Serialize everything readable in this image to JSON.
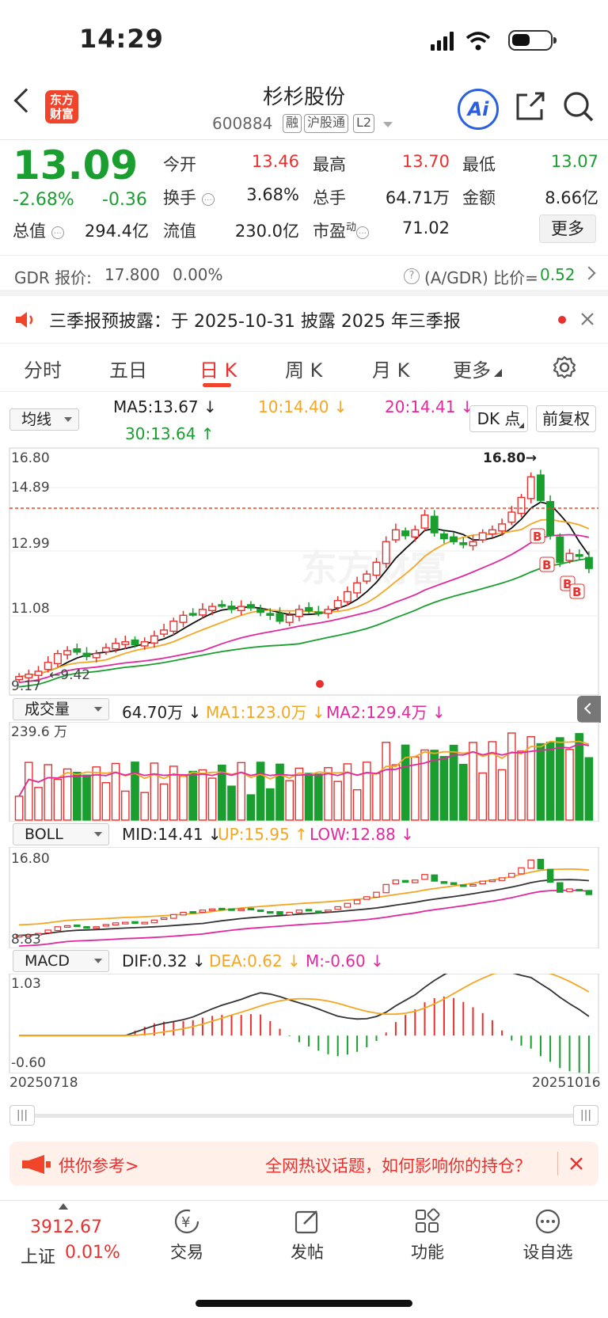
{
  "status_bar": {
    "time": "14:29"
  },
  "header": {
    "logo_text": "东方财富",
    "stock_name": "杉杉股份",
    "stock_code": "600884",
    "tags": [
      "融",
      "沪股通",
      "L2"
    ],
    "ai_label": "Ai"
  },
  "quote": {
    "price": "13.09",
    "change_pct": "-2.68%",
    "change_abs": "-0.36",
    "fields": {
      "open_label": "今开",
      "open": "13.46",
      "high_label": "最高",
      "high": "13.70",
      "low_label": "最低",
      "low": "13.07",
      "turnover_label": "换手",
      "turnover": "3.68%",
      "volume_label": "总手",
      "volume": "64.71万",
      "amount_label": "金额",
      "amount": "8.66亿",
      "mktcap_label": "总值",
      "mktcap": "294.4亿",
      "float_label": "流值",
      "float": "230.0亿",
      "pe_label": "市盈",
      "pe_sup": "动",
      "pe": "71.02"
    },
    "more_label": "更多"
  },
  "gdr": {
    "label": "GDR 报价:",
    "price": "17.800",
    "pct": "0.00%",
    "ratio_label": "(A/GDR) 比价=",
    "ratio": "0.52"
  },
  "notice": {
    "text": "三季报预披露：于 2025-10-31 披露 2025 年三季报"
  },
  "tabs": [
    "分时",
    "五日",
    "日 K",
    "周 K",
    "月 K",
    "更多"
  ],
  "active_tab": 2,
  "kline": {
    "selector": "均线",
    "ma5": "MA5:13.67 ↓",
    "ma10": "10:14.40 ↓",
    "ma20": "20:14.41 ↓",
    "ma30": "30:13.64 ↑",
    "dk_label": "DK 点",
    "fq_label": "前复权",
    "y_ticks": [
      "16.80",
      "14.89",
      "12.99",
      "11.08",
      "9.17"
    ],
    "low_marker": "9.42",
    "high_marker": "16.80",
    "watermark": "东方财富"
  },
  "volume": {
    "selector": "成交量",
    "val": "64.70万 ↓",
    "ma1": "MA1:123.0万 ↓",
    "ma2": "MA2:129.4万 ↓",
    "max_label": "239.6 万"
  },
  "boll": {
    "selector": "BOLL",
    "mid": "MID:14.41 ↓",
    "up": "UP:15.95 ↑",
    "low": "LOW:12.88 ↓",
    "top_label": "16.80",
    "bottom_label": "8.83"
  },
  "macd": {
    "selector": "MACD",
    "dif": "DIF:0.32 ↓",
    "dea": "DEA:0.62 ↓",
    "m": "M:-0.60 ↓",
    "top_label": "1.03",
    "bottom_label": "-0.60"
  },
  "dates": {
    "start": "20250718",
    "end": "20251016"
  },
  "ad": {
    "left_text": "供你参考>",
    "right_text": "全网热议话题，如何影响你的持仓？"
  },
  "bottom_nav": {
    "index_value": "3912.67",
    "index_name": "上证",
    "index_pct": "0.01%",
    "items": [
      "交易",
      "发帖",
      "功能",
      "设自选"
    ]
  },
  "colors": {
    "up": "#e8312f",
    "down": "#1a9e2f",
    "ma10": "#f5a623",
    "ma20": "#e0299e",
    "accent": "#f0452a",
    "ai": "#2a5fe0"
  },
  "chart_data": {
    "type": "candlestick",
    "x_range": [
      "20250718",
      "20251016"
    ],
    "ylim": [
      9.17,
      16.8
    ],
    "last_close": 13.09,
    "closes": [
      9.42,
      9.5,
      9.6,
      9.9,
      10.2,
      10.3,
      10.25,
      10.1,
      10.2,
      10.4,
      10.55,
      10.6,
      10.5,
      10.6,
      10.8,
      11.0,
      11.3,
      11.5,
      11.55,
      11.7,
      11.8,
      11.85,
      11.7,
      11.8,
      11.75,
      11.6,
      11.5,
      11.3,
      11.5,
      11.7,
      11.65,
      11.6,
      11.7,
      12.0,
      12.3,
      12.6,
      12.9,
      13.3,
      14.0,
      14.4,
      14.2,
      14.4,
      14.9,
      14.3,
      14.1,
      14.0,
      13.9,
      14.0,
      14.3,
      14.4,
      14.6,
      15.0,
      15.5,
      16.2,
      15.4,
      14.2,
      13.3,
      13.6,
      13.5,
      13.09
    ]
  }
}
